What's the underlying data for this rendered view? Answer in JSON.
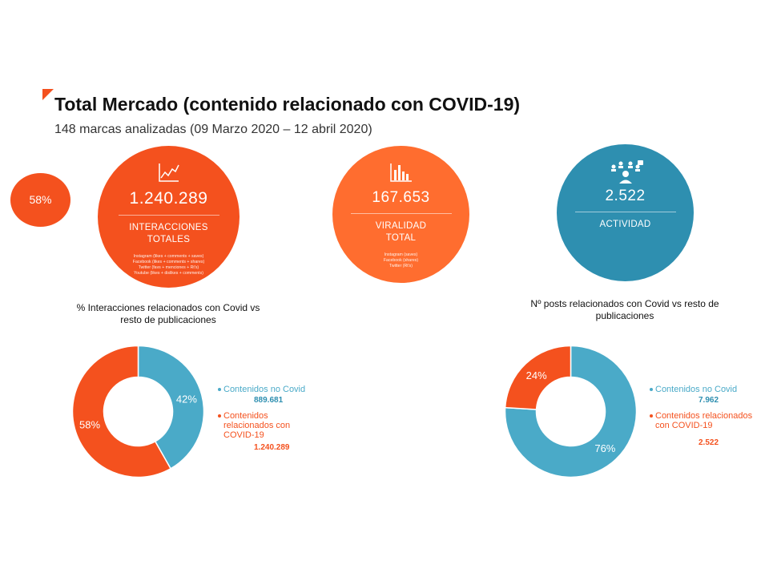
{
  "page": {
    "title": "Total Mercado (contenido relacionado con COVID-19)",
    "subtitle": "148 marcas analizadas (09 Marzo 2020 – 12 abril 2020)",
    "side_badge": "58%"
  },
  "colors": {
    "orange": "#f4511e",
    "orange_light": "#ff6d2f",
    "blue": "#4aaac8",
    "teal": "#2e8fb0"
  },
  "kpis": [
    {
      "icon": "trend-line-icon",
      "value": "1.240.289",
      "label": "INTERACCIONES TOTALES",
      "details": [
        "Instagram (likes + comments + saves)",
        "Facebook (likes + comments + shares)",
        "Twitter (favs + menciones + Rt's)",
        "Youtube (likes + dislikes + comments)"
      ]
    },
    {
      "icon": "bar-chart-icon",
      "value": "167.653",
      "label": "VIRALIDAD TOTAL",
      "details": [
        "Instagram (saves)",
        "Facebook (shares)",
        "Twitter (Rt's)"
      ]
    },
    {
      "icon": "people-network-icon",
      "value": "2.522",
      "label": "ACTIVIDAD",
      "details": []
    }
  ],
  "chart_data": [
    {
      "type": "pie",
      "title": "% Interacciones relacionados con Covid vs resto de publicaciones",
      "categories": [
        "Contenidos no Covid",
        "Contenidos relacionados con COVID-19"
      ],
      "values": [
        889681,
        1240289
      ],
      "value_labels": [
        "889.681",
        "1.240.289"
      ],
      "percent_labels": [
        "42%",
        "58%"
      ],
      "colors": [
        "#4aaac8",
        "#f4511e"
      ],
      "legend": "right"
    },
    {
      "type": "pie",
      "title": "Nº posts relacionados con Covid vs resto de publicaciones",
      "categories": [
        "Contenidos no Covid",
        "Contenidos relacionados con COVID-19"
      ],
      "values": [
        7962,
        2522
      ],
      "value_labels": [
        "7.962",
        "2.522"
      ],
      "percent_labels": [
        "76%",
        "24%"
      ],
      "colors": [
        "#4aaac8",
        "#f4511e"
      ],
      "legend": "right"
    }
  ]
}
